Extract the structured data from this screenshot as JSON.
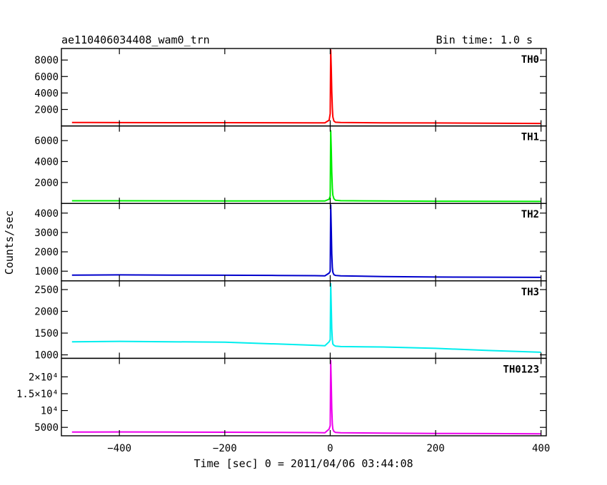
{
  "header": {
    "title": "ae110406034408_wam0_trn",
    "bin_time": "Bin time: 1.0 s"
  },
  "axes": {
    "xlabel": "Time [sec] 0 = 2011/04/06 03:44:08",
    "ylabel": "Counts/sec"
  },
  "chart_data": {
    "type": "line",
    "title": "ae110406034408_wam0_trn",
    "xlabel": "Time [sec] 0 = 2011/04/06 03:44:08",
    "ylabel": "Counts/sec",
    "xlim": [
      -510,
      410
    ],
    "xticks": [
      -400,
      -200,
      0,
      200,
      400
    ],
    "xtick_labels": [
      "−400",
      "−200",
      "0",
      "200",
      "400"
    ],
    "panels": [
      {
        "name": "TH0",
        "color": "#ff0000",
        "ylim": [
          0,
          9400
        ],
        "yticks": [
          2000,
          4000,
          6000,
          8000
        ],
        "ytick_labels": [
          "2000",
          "4000",
          "6000",
          "8000"
        ],
        "series": [
          {
            "x": [
              -490,
              -400,
              -300,
              -200,
              -100,
              -30,
              -10,
              -2,
              0,
              1,
              2,
              3,
              4,
              5,
              7,
              10,
              20,
              100,
              200,
              300,
              400
            ],
            "y": [
              420,
              410,
              400,
              400,
              390,
              385,
              380,
              700,
              1500,
              9300,
              7000,
              4200,
              2200,
              1100,
              600,
              450,
              420,
              380,
              360,
              330,
              300
            ]
          }
        ]
      },
      {
        "name": "TH1",
        "color": "#00ee00",
        "ylim": [
          0,
          7400
        ],
        "yticks": [
          2000,
          4000,
          6000
        ],
        "ytick_labels": [
          "2000",
          "4000",
          "6000"
        ],
        "series": [
          {
            "x": [
              -490,
              -400,
              -300,
              -200,
              -100,
              -30,
              -10,
              -2,
              0,
              1,
              2,
              3,
              4,
              5,
              7,
              10,
              20,
              100,
              200,
              300,
              400
            ],
            "y": [
              250,
              250,
              245,
              240,
              235,
              230,
              230,
              400,
              700,
              7000,
              5200,
              3000,
              1500,
              800,
              450,
              300,
              260,
              230,
              210,
              200,
              190
            ]
          }
        ]
      },
      {
        "name": "TH2",
        "color": "#0000cc",
        "ylim": [
          500,
          4500
        ],
        "yticks": [
          1000,
          2000,
          3000,
          4000
        ],
        "ytick_labels": [
          "1000",
          "2000",
          "3000",
          "4000"
        ],
        "series": [
          {
            "x": [
              -490,
              -400,
              -300,
              -200,
              -100,
              -30,
              -10,
              -2,
              0,
              1,
              2,
              3,
              4,
              5,
              7,
              10,
              20,
              100,
              200,
              300,
              400
            ],
            "y": [
              800,
              810,
              800,
              790,
              780,
              770,
              760,
              900,
              1000,
              4450,
              3200,
              1900,
              1200,
              950,
              820,
              780,
              760,
              720,
              700,
              690,
              680
            ]
          }
        ]
      },
      {
        "name": "TH3",
        "color": "#00eeee",
        "ylim": [
          920,
          2700
        ],
        "yticks": [
          1000,
          1500,
          2000,
          2500
        ],
        "ytick_labels": [
          "1000",
          "1500",
          "2000",
          "2500"
        ],
        "series": [
          {
            "x": [
              -490,
              -400,
              -300,
              -200,
              -100,
              -30,
              -10,
              -2,
              0,
              1,
              2,
              3,
              4,
              5,
              7,
              10,
              20,
              100,
              200,
              300,
              400
            ],
            "y": [
              1300,
              1310,
              1300,
              1290,
              1250,
              1220,
              1210,
              1300,
              1350,
              2650,
              2100,
              1600,
              1350,
              1250,
              1220,
              1200,
              1190,
              1180,
              1150,
              1100,
              1060
            ]
          }
        ]
      },
      {
        "name": "TH0123",
        "color": "#ee00ee",
        "ylim": [
          2500,
          25500
        ],
        "yticks": [
          5000,
          10000,
          15000,
          20000
        ],
        "ytick_labels": [
          "5000",
          "10⁴",
          "1.5×10⁴",
          "2×10⁴"
        ],
        "series": [
          {
            "x": [
              -490,
              -400,
              -300,
              -200,
              -100,
              -30,
              -10,
              -2,
              0,
              1,
              2,
              3,
              4,
              5,
              7,
              10,
              20,
              100,
              200,
              300,
              400
            ],
            "y": [
              3600,
              3650,
              3600,
              3550,
              3500,
              3450,
              3400,
              4500,
              5500,
              25000,
              18000,
              10500,
              6000,
              4500,
              3800,
              3500,
              3400,
              3300,
              3200,
              3150,
              3100
            ]
          }
        ]
      }
    ]
  }
}
